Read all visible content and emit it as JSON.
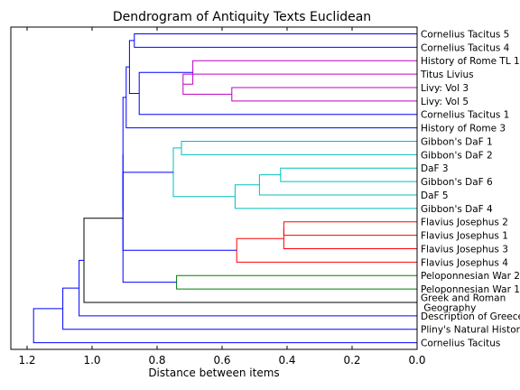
{
  "chart_data": {
    "type": "dendrogram",
    "title": "Dendrogram of Antiquity Texts Euclidean",
    "xlabel": "Distance between items",
    "xlim": [
      1.25,
      0.0
    ],
    "x_ticks": [
      1.2,
      1.0,
      0.8,
      0.6,
      0.4,
      0.2,
      0.0
    ],
    "x_tick_labels": [
      "1.2",
      "1.0",
      "0.8",
      "0.6",
      "0.4",
      "0.2",
      "0.0"
    ],
    "grid": false,
    "leaves": [
      {
        "label": "Cornelius Tacitus 5"
      },
      {
        "label": "Cornelius Tacitus 4"
      },
      {
        "label": "History of Rome TL 1"
      },
      {
        "label": "Titus Livius"
      },
      {
        "label": "Livy: Vol 3"
      },
      {
        "label": "Livy: Vol 5"
      },
      {
        "label": "Cornelius Tacitus 1"
      },
      {
        "label": "History of Rome 3"
      },
      {
        "label": "Gibbon's DaF 1"
      },
      {
        "label": "Gibbon's DaF 2"
      },
      {
        "label": "DaF 3"
      },
      {
        "label": "Gibbon's DaF 6"
      },
      {
        "label": "DaF 5"
      },
      {
        "label": "Gibbon's DaF 4"
      },
      {
        "label": "Flavius Josephus 2"
      },
      {
        "label": "Flavius Josephus 1"
      },
      {
        "label": "Flavius Josephus 3"
      },
      {
        "label": "Flavius Josephus 4"
      },
      {
        "label": "Peloponnesian War 2"
      },
      {
        "label": "Peloponnesian War 1"
      },
      {
        "label": "Greek and Roman\n Geography"
      },
      {
        "label": "Description of Greece"
      },
      {
        "label": "Pliny's Natural History"
      },
      {
        "label": "Cornelius Tacitus"
      }
    ],
    "cluster_colors": {
      "blue": "#0000ff",
      "magenta": "#bf00bf",
      "cyan": "#00bfbf",
      "red": "#ff0000",
      "green": "#008000",
      "black": "#000000"
    },
    "merges": [
      {
        "id": "m1",
        "left": 0,
        "right": 1,
        "distance": 0.87,
        "color": "blue"
      },
      {
        "id": "m2",
        "left": 4,
        "right": 5,
        "distance": 0.57,
        "color": "magenta"
      },
      {
        "id": "m3",
        "left": 3,
        "right": "m2",
        "distance": 0.72,
        "color": "magenta"
      },
      {
        "id": "m4",
        "left": 2,
        "right": "m3",
        "distance": 0.69,
        "color": "magenta"
      },
      {
        "id": "m5",
        "left": "m4",
        "right": 6,
        "distance": 0.855,
        "color": "blue"
      },
      {
        "id": "m6",
        "left": "m1",
        "right": "m5",
        "distance": 0.885,
        "color": "blue"
      },
      {
        "id": "m7",
        "left": "m6",
        "right": 7,
        "distance": 0.895,
        "color": "blue"
      },
      {
        "id": "m8",
        "left": 8,
        "right": 9,
        "distance": 0.725,
        "color": "cyan"
      },
      {
        "id": "m9",
        "left": 10,
        "right": 11,
        "distance": 0.42,
        "color": "cyan"
      },
      {
        "id": "m10",
        "left": "m9",
        "right": 12,
        "distance": 0.485,
        "color": "cyan"
      },
      {
        "id": "m11",
        "left": "m10",
        "right": 13,
        "distance": 0.56,
        "color": "cyan"
      },
      {
        "id": "m12",
        "left": "m8",
        "right": "m11",
        "distance": 0.75,
        "color": "cyan"
      },
      {
        "id": "m13",
        "left": 14,
        "right": 15,
        "distance": 0.41,
        "color": "red"
      },
      {
        "id": "m14",
        "left": "m13",
        "right": 16,
        "distance": 0.41,
        "color": "red"
      },
      {
        "id": "m15",
        "left": "m14",
        "right": 17,
        "distance": 0.555,
        "color": "red"
      },
      {
        "id": "m16",
        "left": "m12",
        "right": "m15",
        "distance": 0.905,
        "color": "blue"
      },
      {
        "id": "m17",
        "left": "m7",
        "right": "m16",
        "distance": 0.905,
        "color": "blue"
      },
      {
        "id": "m18",
        "left": 18,
        "right": 19,
        "distance": 0.74,
        "color": "green"
      },
      {
        "id": "m19",
        "left": "m17",
        "right": "m18",
        "distance": 0.905,
        "color": "blue"
      },
      {
        "id": "m20",
        "left": "m19",
        "right": 20,
        "distance": 1.025,
        "color": "black"
      },
      {
        "id": "m21",
        "left": "m20",
        "right": 21,
        "distance": 1.04,
        "color": "blue"
      },
      {
        "id": "m22",
        "left": "m21",
        "right": 22,
        "distance": 1.09,
        "color": "blue"
      },
      {
        "id": "m23",
        "left": "m22",
        "right": 23,
        "distance": 1.18,
        "color": "blue"
      }
    ]
  }
}
